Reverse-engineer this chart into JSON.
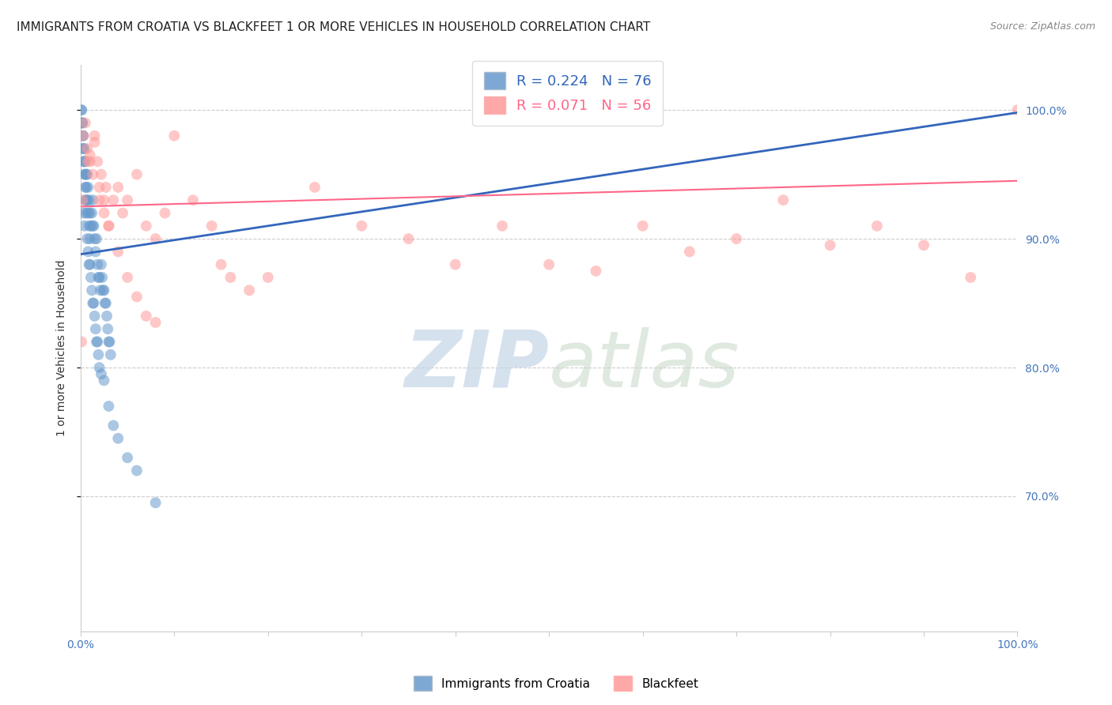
{
  "title": "IMMIGRANTS FROM CROATIA VS BLACKFEET 1 OR MORE VEHICLES IN HOUSEHOLD CORRELATION CHART",
  "source": "Source: ZipAtlas.com",
  "ylabel": "1 or more Vehicles in Household",
  "ytick_labels": [
    "100.0%",
    "90.0%",
    "80.0%",
    "70.0%"
  ],
  "ytick_values": [
    1.0,
    0.9,
    0.8,
    0.7
  ],
  "xmin": 0.0,
  "xmax": 1.0,
  "ymin": 0.595,
  "ymax": 1.035,
  "legend_blue_r": "0.224",
  "legend_blue_n": "76",
  "legend_pink_r": "0.071",
  "legend_pink_n": "56",
  "legend_label_blue": "Immigrants from Croatia",
  "legend_label_pink": "Blackfeet",
  "blue_color": "#6699CC",
  "pink_color": "#FF9999",
  "blue_line_color": "#3366BB",
  "pink_line_color": "#FF6688",
  "watermark_zip": "ZIP",
  "watermark_atlas": "atlas",
  "grid_color": "#CCCCCC",
  "background_color": "#FFFFFF",
  "title_fontsize": 11,
  "axis_label_fontsize": 10,
  "tick_fontsize": 10,
  "marker_size": 100,
  "blue_scatter_x": [
    0.001,
    0.001,
    0.001,
    0.002,
    0.002,
    0.002,
    0.002,
    0.003,
    0.003,
    0.003,
    0.004,
    0.004,
    0.004,
    0.005,
    0.005,
    0.005,
    0.006,
    0.006,
    0.006,
    0.007,
    0.007,
    0.008,
    0.008,
    0.009,
    0.009,
    0.01,
    0.01,
    0.011,
    0.012,
    0.013,
    0.013,
    0.014,
    0.015,
    0.016,
    0.017,
    0.018,
    0.019,
    0.02,
    0.021,
    0.022,
    0.023,
    0.024,
    0.025,
    0.026,
    0.027,
    0.028,
    0.029,
    0.03,
    0.031,
    0.032,
    0.003,
    0.004,
    0.005,
    0.006,
    0.007,
    0.008,
    0.009,
    0.01,
    0.011,
    0.012,
    0.013,
    0.014,
    0.015,
    0.016,
    0.017,
    0.018,
    0.019,
    0.02,
    0.022,
    0.025,
    0.03,
    0.035,
    0.04,
    0.05,
    0.06,
    0.08
  ],
  "blue_scatter_y": [
    1.0,
    1.0,
    0.99,
    0.99,
    0.99,
    0.98,
    0.97,
    0.98,
    0.97,
    0.96,
    0.97,
    0.96,
    0.95,
    0.96,
    0.95,
    0.94,
    0.95,
    0.94,
    0.93,
    0.95,
    0.93,
    0.94,
    0.92,
    0.93,
    0.91,
    0.92,
    0.9,
    0.91,
    0.92,
    0.93,
    0.91,
    0.91,
    0.9,
    0.89,
    0.9,
    0.88,
    0.87,
    0.87,
    0.86,
    0.88,
    0.87,
    0.86,
    0.86,
    0.85,
    0.85,
    0.84,
    0.83,
    0.82,
    0.82,
    0.81,
    0.92,
    0.91,
    0.93,
    0.92,
    0.9,
    0.89,
    0.88,
    0.88,
    0.87,
    0.86,
    0.85,
    0.85,
    0.84,
    0.83,
    0.82,
    0.82,
    0.81,
    0.8,
    0.795,
    0.79,
    0.77,
    0.755,
    0.745,
    0.73,
    0.72,
    0.695
  ],
  "pink_scatter_x": [
    0.001,
    0.002,
    0.003,
    0.005,
    0.007,
    0.008,
    0.01,
    0.013,
    0.015,
    0.018,
    0.02,
    0.022,
    0.025,
    0.027,
    0.03,
    0.035,
    0.04,
    0.045,
    0.05,
    0.06,
    0.07,
    0.08,
    0.09,
    0.1,
    0.12,
    0.14,
    0.15,
    0.16,
    0.18,
    0.2,
    0.25,
    0.3,
    0.35,
    0.4,
    0.45,
    0.5,
    0.55,
    0.6,
    0.65,
    0.7,
    0.75,
    0.8,
    0.85,
    0.9,
    0.95,
    1.0,
    0.01,
    0.015,
    0.02,
    0.025,
    0.03,
    0.04,
    0.05,
    0.06,
    0.07,
    0.08
  ],
  "pink_scatter_y": [
    0.82,
    0.93,
    0.98,
    0.99,
    0.97,
    0.96,
    0.96,
    0.95,
    0.98,
    0.96,
    0.94,
    0.95,
    0.93,
    0.94,
    0.91,
    0.93,
    0.94,
    0.92,
    0.93,
    0.95,
    0.91,
    0.9,
    0.92,
    0.98,
    0.93,
    0.91,
    0.88,
    0.87,
    0.86,
    0.87,
    0.94,
    0.91,
    0.9,
    0.88,
    0.91,
    0.88,
    0.875,
    0.91,
    0.89,
    0.9,
    0.93,
    0.895,
    0.91,
    0.895,
    0.87,
    1.0,
    0.965,
    0.975,
    0.93,
    0.92,
    0.91,
    0.89,
    0.87,
    0.855,
    0.84,
    0.835
  ],
  "blue_trendline_x": [
    0.0,
    1.0
  ],
  "blue_trendline_y": [
    0.888,
    0.998
  ],
  "pink_trendline_x": [
    0.0,
    1.0
  ],
  "pink_trendline_y": [
    0.925,
    0.945
  ]
}
